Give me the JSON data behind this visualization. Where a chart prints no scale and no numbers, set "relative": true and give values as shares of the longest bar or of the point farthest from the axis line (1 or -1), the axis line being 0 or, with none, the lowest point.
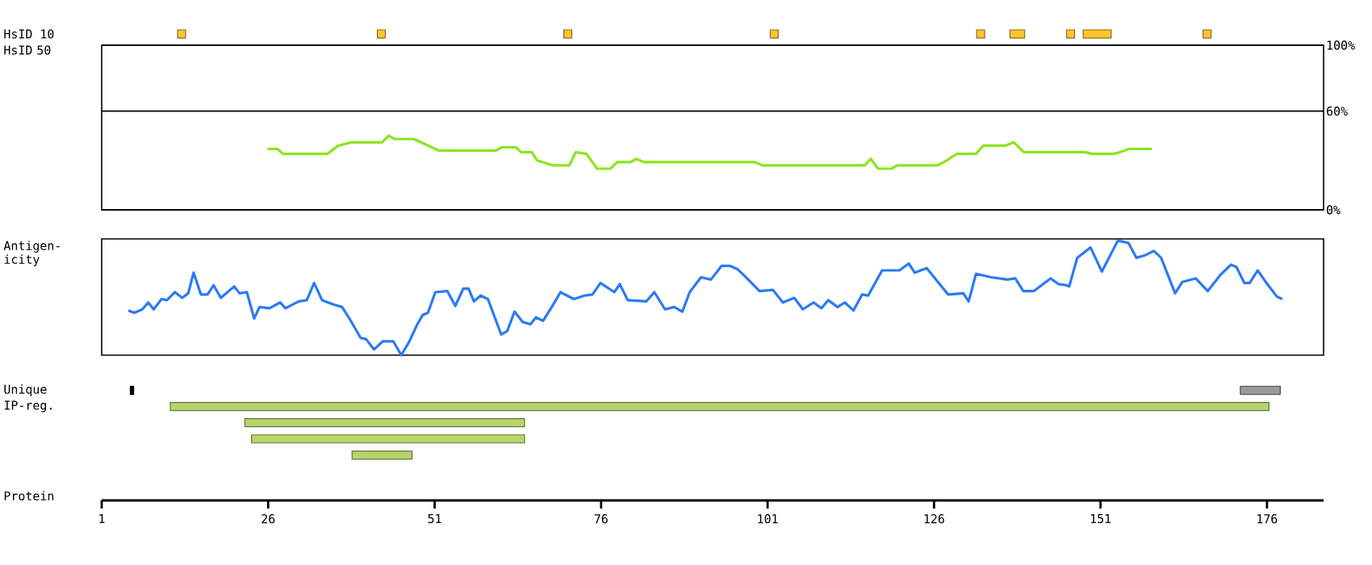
{
  "chart_data": [
    {
      "type": "line",
      "ylabel": "HsID 50",
      "x": [
        25.9,
        27.4,
        28.2,
        34.9,
        36.5,
        38.5,
        43.1,
        44.1,
        45.0,
        47.9,
        51.6,
        60.2,
        61.1,
        63.2,
        64.0,
        65.6,
        66.4,
        68.8,
        71.2,
        72.2,
        73.8,
        75.4,
        77.4,
        78.4,
        80.4,
        81.3,
        82.4,
        99.1,
        100.2,
        115.6,
        116.5,
        117.6,
        119.6,
        120.5,
        126.5,
        127.9,
        129.4,
        132.3,
        133.4,
        136.7,
        138.0,
        139.5,
        148.7,
        149.8,
        152.9,
        153.9,
        155.3,
        158.7
      ],
      "values": [
        37,
        37,
        34,
        34,
        39,
        41,
        41,
        45,
        43,
        43,
        36,
        36,
        38,
        38,
        35,
        35,
        30,
        27,
        27,
        35,
        34,
        25,
        25,
        29,
        29,
        31,
        29,
        29,
        27,
        27,
        31,
        25,
        25,
        27,
        27,
        30,
        34,
        34,
        39,
        39,
        41,
        35,
        35,
        34,
        34,
        35,
        37,
        37
      ],
      "color": "#8ee41c",
      "xlim": [
        1,
        184.5
      ],
      "ylim": [
        0,
        100
      ],
      "yticks": [
        {
          "value": 0,
          "label": "0%"
        },
        {
          "value": 60,
          "label": "60%"
        },
        {
          "value": 100,
          "label": "100%"
        }
      ],
      "grid": "y",
      "tick_labels": "y"
    },
    {
      "type": "line",
      "ylabel": "Antigen-icity",
      "x": [
        5.0,
        5.9,
        7.1,
        8.0,
        8.8,
        10.0,
        10.8,
        12.0,
        13.1,
        14.0,
        14.8,
        15.9,
        16.9,
        17.8,
        18.9,
        20.9,
        21.7,
        22.8,
        23.9,
        24.7,
        26.2,
        27.8,
        28.6,
        30.6,
        31.8,
        32.9,
        34.1,
        35.9,
        37.1,
        38.3,
        39.9,
        40.7,
        41.9,
        43.2,
        44.8,
        46.0,
        47.2,
        48.4,
        49.2,
        50.0,
        51.1,
        52.9,
        54.1,
        55.3,
        56.1,
        56.9,
        57.9,
        59.0,
        61.0,
        61.9,
        63.0,
        64.2,
        65.4,
        66.2,
        67.3,
        68.9,
        69.9,
        71.9,
        73.5,
        74.7,
        75.9,
        78.0,
        78.8,
        80.0,
        82.8,
        84.0,
        85.6,
        87.0,
        88.2,
        89.3,
        91.0,
        92.5,
        94.1,
        95.3,
        96.5,
        97.4,
        99.8,
        101.8,
        103.3,
        105.0,
        106.3,
        107.9,
        109.1,
        110.1,
        111.5,
        112.6,
        113.9,
        115.2,
        116.1,
        118.2,
        120.8,
        122.2,
        123.1,
        124.9,
        128.1,
        130.4,
        131.2,
        132.3,
        134.6,
        137.0,
        138.2,
        139.4,
        141.0,
        143.5,
        144.7,
        145.9,
        146.3,
        147.5,
        149.5,
        151.2,
        153.6,
        155.2,
        156.4,
        157.6,
        159.0,
        160.1,
        162.2,
        163.3,
        165.3,
        167.1,
        169.0,
        170.6,
        171.4,
        172.6,
        173.4,
        174.6,
        175.8,
        177.5,
        178.3
      ],
      "values": [
        0.39,
        0.37,
        0.4,
        0.46,
        0.4,
        0.49,
        0.48,
        0.55,
        0.5,
        0.54,
        0.72,
        0.53,
        0.53,
        0.61,
        0.5,
        0.6,
        0.54,
        0.55,
        0.32,
        0.42,
        0.41,
        0.46,
        0.41,
        0.47,
        0.48,
        0.63,
        0.48,
        0.44,
        0.42,
        0.31,
        0.15,
        0.14,
        0.05,
        0.12,
        0.12,
        0,
        0.12,
        0.27,
        0.35,
        0.37,
        0.55,
        0.56,
        0.43,
        0.58,
        0.58,
        0.47,
        0.52,
        0.49,
        0.18,
        0.21,
        0.38,
        0.29,
        0.27,
        0.33,
        0.3,
        0.45,
        0.55,
        0.49,
        0.52,
        0.53,
        0.63,
        0.55,
        0.62,
        0.48,
        0.47,
        0.55,
        0.4,
        0.42,
        0.38,
        0.55,
        0.68,
        0.66,
        0.78,
        0.78,
        0.75,
        0.7,
        0.56,
        0.57,
        0.46,
        0.5,
        0.4,
        0.46,
        0.41,
        0.48,
        0.42,
        0.46,
        0.39,
        0.53,
        0.52,
        0.74,
        0.74,
        0.8,
        0.72,
        0.76,
        0.53,
        0.54,
        0.47,
        0.71,
        0.68,
        0.66,
        0.67,
        0.56,
        0.56,
        0.67,
        0.62,
        0.61,
        0.6,
        0.85,
        0.94,
        0.73,
        1,
        0.98,
        0.85,
        0.87,
        0.91,
        0.85,
        0.54,
        0.64,
        0.67,
        0.56,
        0.7,
        0.79,
        0.77,
        0.63,
        0.63,
        0.74,
        0.64,
        0.51,
        0.49
      ],
      "relative": true,
      "color": "#2a7af5",
      "xlim": [
        1,
        184.5
      ],
      "tick_labels": false
    },
    {
      "type": "bar",
      "orientation": "horizontal",
      "xlabel": "Protein",
      "categories": [
        "HsID 10",
        null,
        null,
        null,
        null,
        null,
        null,
        null,
        null,
        null,
        null,
        null,
        null,
        null,
        null,
        null,
        null,
        null,
        null,
        null,
        null,
        null,
        "Unique",
        "IP-reg.",
        null,
        null,
        null
      ],
      "series": [
        {
          "color": "#fec52e",
          "values": [
            1.2,
            null,
            null,
            null,
            null,
            null,
            null,
            null,
            null,
            null,
            null,
            null,
            null,
            null,
            null,
            null,
            null,
            null,
            null,
            null,
            null,
            null,
            null,
            null,
            null,
            null,
            null
          ],
          "base": [
            12.4,
            null,
            null,
            null,
            null,
            null,
            null,
            null,
            null,
            null,
            null,
            null,
            null,
            null,
            null,
            null,
            null,
            null,
            null,
            null,
            null,
            null,
            null,
            null,
            null,
            null,
            null
          ]
        },
        {
          "color": "#fec52e",
          "values": [
            1.2,
            null,
            null,
            null,
            null,
            null,
            null,
            null,
            null,
            null,
            null,
            null,
            null,
            null,
            null,
            null,
            null,
            null,
            null,
            null,
            null,
            null,
            null,
            null,
            null,
            null,
            null
          ],
          "base": [
            42.4,
            null,
            null,
            null,
            null,
            null,
            null,
            null,
            null,
            null,
            null,
            null,
            null,
            null,
            null,
            null,
            null,
            null,
            null,
            null,
            null,
            null,
            null,
            null,
            null,
            null,
            null
          ]
        },
        {
          "color": "#fec52e",
          "values": [
            1.2,
            null,
            null,
            null,
            null,
            null,
            null,
            null,
            null,
            null,
            null,
            null,
            null,
            null,
            null,
            null,
            null,
            null,
            null,
            null,
            null,
            null,
            null,
            null,
            null,
            null,
            null
          ],
          "base": [
            70.4,
            null,
            null,
            null,
            null,
            null,
            null,
            null,
            null,
            null,
            null,
            null,
            null,
            null,
            null,
            null,
            null,
            null,
            null,
            null,
            null,
            null,
            null,
            null,
            null,
            null,
            null
          ]
        },
        {
          "color": "#fec52e",
          "values": [
            1.2,
            null,
            null,
            null,
            null,
            null,
            null,
            null,
            null,
            null,
            null,
            null,
            null,
            null,
            null,
            null,
            null,
            null,
            null,
            null,
            null,
            null,
            null,
            null,
            null,
            null,
            null
          ],
          "base": [
            101.4,
            null,
            null,
            null,
            null,
            null,
            null,
            null,
            null,
            null,
            null,
            null,
            null,
            null,
            null,
            null,
            null,
            null,
            null,
            null,
            null,
            null,
            null,
            null,
            null,
            null,
            null
          ]
        },
        {
          "color": "#fec52e",
          "values": [
            1.2,
            null,
            null,
            null,
            null,
            null,
            null,
            null,
            null,
            null,
            null,
            null,
            null,
            null,
            null,
            null,
            null,
            null,
            null,
            null,
            null,
            null,
            null,
            null,
            null,
            null,
            null
          ],
          "base": [
            132.4,
            null,
            null,
            null,
            null,
            null,
            null,
            null,
            null,
            null,
            null,
            null,
            null,
            null,
            null,
            null,
            null,
            null,
            null,
            null,
            null,
            null,
            null,
            null,
            null,
            null,
            null
          ]
        },
        {
          "color": "#fec52e",
          "values": [
            2.2,
            null,
            null,
            null,
            null,
            null,
            null,
            null,
            null,
            null,
            null,
            null,
            null,
            null,
            null,
            null,
            null,
            null,
            null,
            null,
            null,
            null,
            null,
            null,
            null,
            null,
            null
          ],
          "base": [
            137.4,
            null,
            null,
            null,
            null,
            null,
            null,
            null,
            null,
            null,
            null,
            null,
            null,
            null,
            null,
            null,
            null,
            null,
            null,
            null,
            null,
            null,
            null,
            null,
            null,
            null,
            null
          ]
        },
        {
          "color": "#fec52e",
          "values": [
            1.2,
            null,
            null,
            null,
            null,
            null,
            null,
            null,
            null,
            null,
            null,
            null,
            null,
            null,
            null,
            null,
            null,
            null,
            null,
            null,
            null,
            null,
            null,
            null,
            null,
            null,
            null
          ],
          "base": [
            145.9,
            null,
            null,
            null,
            null,
            null,
            null,
            null,
            null,
            null,
            null,
            null,
            null,
            null,
            null,
            null,
            null,
            null,
            null,
            null,
            null,
            null,
            null,
            null,
            null,
            null,
            null
          ]
        },
        {
          "color": "#fec52e",
          "values": [
            4.2,
            null,
            null,
            null,
            null,
            null,
            null,
            null,
            null,
            null,
            null,
            null,
            null,
            null,
            null,
            null,
            null,
            null,
            null,
            null,
            null,
            null,
            null,
            null,
            null,
            null,
            null
          ],
          "base": [
            148.4,
            null,
            null,
            null,
            null,
            null,
            null,
            null,
            null,
            null,
            null,
            null,
            null,
            null,
            null,
            null,
            null,
            null,
            null,
            null,
            null,
            null,
            null,
            null,
            null,
            null,
            null
          ]
        },
        {
          "color": "#fec52e",
          "values": [
            1.2,
            null,
            null,
            null,
            null,
            null,
            null,
            null,
            null,
            null,
            null,
            null,
            null,
            null,
            null,
            null,
            null,
            null,
            null,
            null,
            null,
            null,
            null,
            null,
            null,
            null,
            null
          ],
          "base": [
            166.4,
            null,
            null,
            null,
            null,
            null,
            null,
            null,
            null,
            null,
            null,
            null,
            null,
            null,
            null,
            null,
            null,
            null,
            null,
            null,
            null,
            null,
            null,
            null,
            null,
            null,
            null
          ]
        },
        {
          "color": "#000000",
          "values": [
            null,
            null,
            null,
            null,
            null,
            null,
            null,
            null,
            null,
            null,
            null,
            null,
            null,
            null,
            null,
            null,
            null,
            null,
            null,
            null,
            null,
            null,
            0.5,
            null,
            null,
            null,
            null
          ],
          "base": [
            null,
            null,
            null,
            null,
            null,
            null,
            null,
            null,
            null,
            null,
            null,
            null,
            null,
            null,
            null,
            null,
            null,
            null,
            null,
            null,
            null,
            null,
            5.3,
            null,
            null,
            null,
            null
          ]
        },
        {
          "color": "#999999",
          "values": [
            null,
            null,
            null,
            null,
            null,
            null,
            null,
            null,
            null,
            null,
            null,
            null,
            null,
            null,
            null,
            null,
            null,
            null,
            null,
            null,
            null,
            null,
            6,
            null,
            null,
            null,
            null
          ],
          "base": [
            null,
            null,
            null,
            null,
            null,
            null,
            null,
            null,
            null,
            null,
            null,
            null,
            null,
            null,
            null,
            null,
            null,
            null,
            null,
            null,
            null,
            null,
            172,
            null,
            null,
            null,
            null
          ]
        },
        {
          "color": "#b5d56a",
          "values": [
            null,
            null,
            null,
            null,
            null,
            null,
            null,
            null,
            null,
            null,
            null,
            null,
            null,
            null,
            null,
            null,
            null,
            null,
            null,
            null,
            null,
            null,
            null,
            165,
            42,
            41,
            9
          ],
          "base": [
            null,
            null,
            null,
            null,
            null,
            null,
            null,
            null,
            null,
            null,
            null,
            null,
            null,
            null,
            null,
            null,
            null,
            null,
            null,
            null,
            null,
            null,
            null,
            11.3,
            22.5,
            23.5,
            38.6
          ]
        }
      ],
      "xlim": [
        1,
        184.5
      ],
      "xticks": [
        1,
        26,
        51,
        76,
        101,
        126,
        151,
        176
      ]
    }
  ]
}
